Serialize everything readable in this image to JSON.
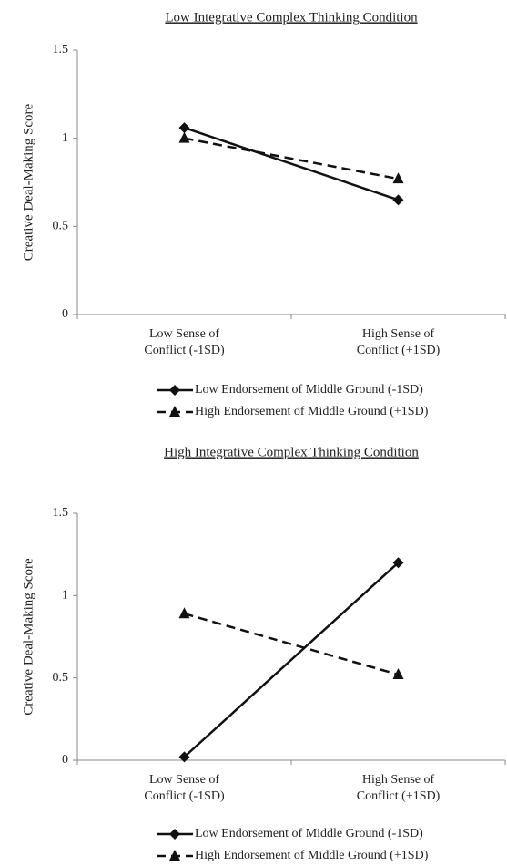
{
  "chart_data": [
    {
      "type": "line",
      "title": "Low Integrative Complex Thinking Condition",
      "ylabel": "Creative Deal-Making Score",
      "categories": [
        "Low Sense of\nConflict (-1SD)",
        "High Sense of\nConflict (+1SD)"
      ],
      "series": [
        {
          "name": "Low Endorsement of Middle Ground (-1SD)",
          "color": "#111111",
          "marker": "diamond",
          "line_style": "solid",
          "values": [
            1.06,
            0.65
          ]
        },
        {
          "name": "High Endorsement of Middle Ground (+1SD)",
          "color": "#111111",
          "marker": "triangle",
          "line_style": "dashed",
          "values": [
            1.0,
            0.77
          ]
        }
      ],
      "ylim": [
        0,
        1.5
      ],
      "yticks": [
        0,
        0.5,
        1,
        1.5
      ],
      "grid": false,
      "legend": "bottom"
    },
    {
      "type": "line",
      "title": "High Integrative Complex Thinking Condition",
      "ylabel": "Creative Deal-Making Score",
      "categories": [
        "Low Sense of\nConflict (-1SD)",
        "High Sense of\nConflict (+1SD)"
      ],
      "series": [
        {
          "name": "Low Endorsement of Middle Ground (-1SD)",
          "color": "#111111",
          "marker": "diamond",
          "line_style": "solid",
          "values": [
            0.02,
            1.2
          ]
        },
        {
          "name": "High Endorsement of Middle Ground (+1SD)",
          "color": "#111111",
          "marker": "triangle",
          "line_style": "dashed",
          "values": [
            0.89,
            0.52
          ]
        }
      ],
      "ylim": [
        0,
        1.5
      ],
      "yticks": [
        0,
        0.5,
        1,
        1.5
      ],
      "grid": false,
      "legend": "bottom"
    }
  ]
}
